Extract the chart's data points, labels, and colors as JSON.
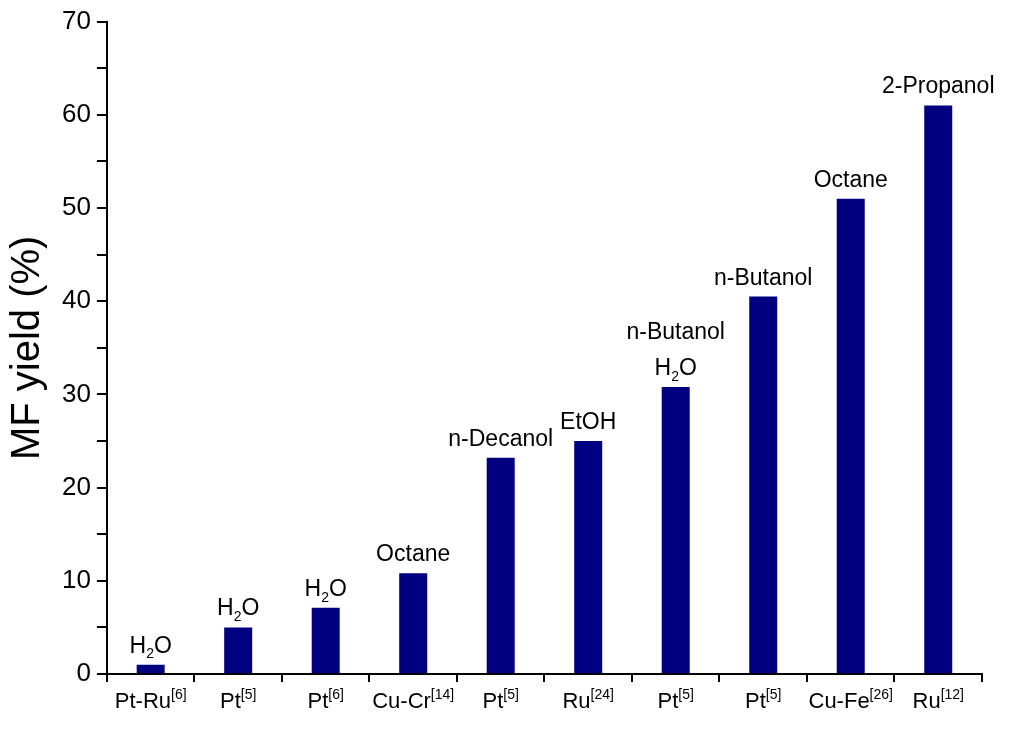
{
  "chart_data": {
    "type": "bar",
    "ylabel": "MF yield (%)",
    "categories": [
      "Pt-Ru$^{[6]}$",
      "Pt$^{[5]}$",
      "Pt$^{[6]}$",
      "Cu-Cr$^{[14]}$",
      "Pt$^{[5]}$",
      "Ru$^{[24]}$",
      "Pt$^{[5]}$",
      "Pt$^{[5]}$",
      "Cu-Fe$^{[26]}$",
      "Ru$^{[12]}$"
    ],
    "values": [
      1,
      5,
      7.1,
      10.8,
      23.2,
      25,
      30.8,
      40.5,
      51,
      61
    ],
    "annotations": [
      {
        "text": "H$_{2}$O",
        "x": "Pt-Ru$^{[6]}$",
        "y": 1
      },
      {
        "text": "H$_{2}$O",
        "x": "Pt$^{[5]}$",
        "y": 5
      },
      {
        "text": "H$_{2}$O",
        "x": "Pt$^{[6]}$",
        "y": 7.1
      },
      {
        "text": "Octane",
        "x": "Cu-Cr$^{[14]}$",
        "y": 10.8
      },
      {
        "text": "n-Decanol",
        "y": 23.2
      },
      {
        "text": "EtOH",
        "x": "Ru$^{[24]}$",
        "y": 25
      },
      {
        "text": "H$_{2}$O",
        "y": 30.8
      },
      {
        "text": "n-Butanol",
        "y": 30.8
      },
      {
        "text": "n-Butanol",
        "y": 40.5
      },
      {
        "text": "Octane",
        "x": "Cu-Fe$^{[26]}$",
        "y": 51
      },
      {
        "text": "2-Propanol",
        "x": "Ru$^{[12]}$",
        "y": 61
      }
    ],
    "color": "#000080",
    "ylim": [
      0,
      70
    ],
    "yticks": [
      0,
      {
        "value": 5,
        "label": null
      },
      10,
      {
        "value": 15,
        "label": null
      },
      20,
      {
        "value": 25,
        "label": null
      },
      30,
      {
        "value": 35,
        "label": null
      },
      40,
      {
        "value": 45,
        "label": null
      },
      50,
      {
        "value": 55,
        "label": null
      },
      60,
      {
        "value": 65,
        "label": null
      },
      70
    ],
    "grid": false,
    "legend": false
  }
}
